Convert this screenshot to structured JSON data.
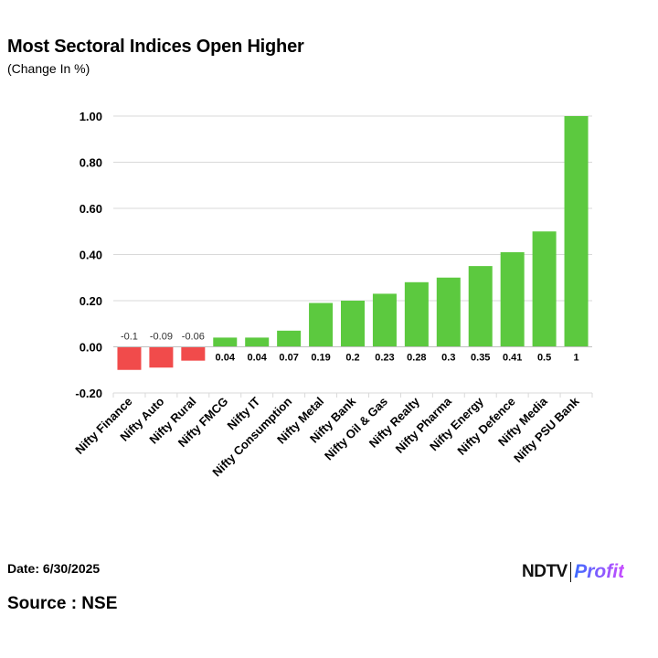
{
  "header": {
    "title": "Most Sectoral Indices Open Higher",
    "subtitle": "(Change In %)"
  },
  "footer": {
    "date": "Date: 6/30/2025",
    "source": "Source : NSE",
    "logo_left": "NDTV",
    "logo_right": "Profit"
  },
  "colors": {
    "positive": "#5cc93f",
    "negative": "#f14b4b",
    "grid": "#d9d9d9"
  },
  "chart_data": {
    "type": "bar",
    "title": "Most Sectoral Indices Open Higher",
    "subtitle": "(Change In %)",
    "categories": [
      "Nifty Finance",
      "Nifty Auto",
      "Nifty Rural",
      "Nifty FMCG",
      "Nifty IT",
      "Nifty Consumption",
      "Nifty Metal",
      "Nifty Bank",
      "Nifty Oil & Gas",
      "Nifty Realty",
      "Nifty Pharma",
      "Nifty Energy",
      "Nifty Defence",
      "Nifty Media",
      "Nifty PSU Bank"
    ],
    "values": [
      -0.1,
      -0.09,
      -0.06,
      0.04,
      0.04,
      0.07,
      0.19,
      0.2,
      0.23,
      0.28,
      0.3,
      0.35,
      0.41,
      0.5,
      1
    ],
    "value_labels": [
      "-0.1",
      "-0.09",
      "-0.06",
      "0.04",
      "0.04",
      "0.07",
      "0.19",
      "0.2",
      "0.23",
      "0.28",
      "0.3",
      "0.35",
      "0.41",
      "0.5",
      "1"
    ],
    "yticks": [
      -0.2,
      0,
      0.2,
      0.4,
      0.6,
      0.8,
      1.0
    ],
    "ytick_labels": [
      "-0.20",
      "0.00",
      "0.20",
      "0.40",
      "0.60",
      "0.80",
      "1.00"
    ],
    "ylim": [
      -0.2,
      1.0
    ],
    "grid": true,
    "legend": "none"
  }
}
